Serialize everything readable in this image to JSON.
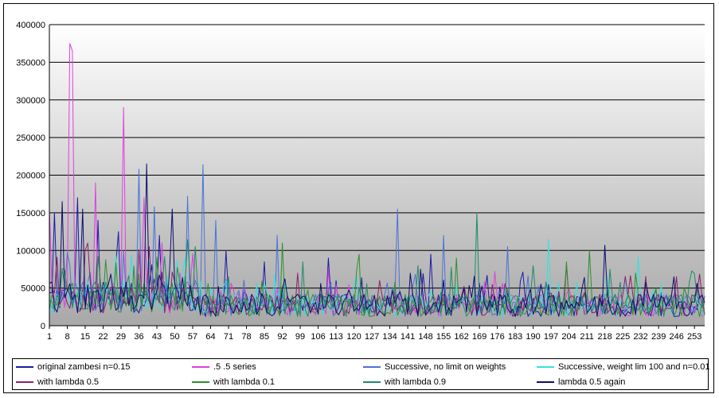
{
  "chart_data": {
    "type": "line",
    "title": "",
    "xlabel": "",
    "ylabel": "",
    "ylim": [
      0,
      400000
    ],
    "y_ticks": [
      0,
      50000,
      100000,
      150000,
      200000,
      250000,
      300000,
      350000,
      400000
    ],
    "y_tick_labels": [
      "0",
      "50000",
      "100000",
      "150000",
      "200000",
      "250000",
      "300000",
      "350000",
      "400000"
    ],
    "x_range": [
      1,
      257
    ],
    "x_tick_labels": [
      "1",
      "8",
      "15",
      "22",
      "29",
      "36",
      "43",
      "50",
      "57",
      "64",
      "71",
      "78",
      "85",
      "92",
      "99",
      "106",
      "113",
      "120",
      "127",
      "134",
      "141",
      "148",
      "155",
      "162",
      "169",
      "176",
      "183",
      "190",
      "197",
      "204",
      "211",
      "218",
      "225",
      "232",
      "239",
      "246",
      "253"
    ],
    "grid": "horizontal major gridlines",
    "plot_background": "gradient from light gray at top to darker gray at bottom",
    "legend_position": "bottom",
    "series": [
      {
        "name": "original zambesi n=0.15",
        "color": "#1a1aa6",
        "peaks": [
          [
            3,
            150000
          ],
          [
            12,
            170000
          ],
          [
            20,
            140000
          ],
          [
            28,
            125000
          ],
          [
            44,
            120000
          ],
          [
            70,
            100000
          ],
          [
            85,
            85000
          ],
          [
            110,
            90000
          ],
          [
            150,
            95000
          ]
        ]
      },
      {
        "name": ".5 .5 series",
        "color": "#e040e0",
        "peaks": [
          [
            1,
            155000
          ],
          [
            9,
            375000
          ],
          [
            10,
            365000
          ],
          [
            19,
            190000
          ],
          [
            30,
            290000
          ],
          [
            38,
            170000
          ],
          [
            45,
            110000
          ],
          [
            52,
            70000
          ]
        ]
      },
      {
        "name": "Successive, no limit on weights",
        "color": "#4a73d6",
        "peaks": [
          [
            36,
            208000
          ],
          [
            42,
            158000
          ],
          [
            55,
            172000
          ],
          [
            61,
            214000
          ],
          [
            66,
            140000
          ],
          [
            90,
            120000
          ],
          [
            137,
            155000
          ],
          [
            155,
            120000
          ],
          [
            180,
            105000
          ]
        ]
      },
      {
        "name": "Successive, weight lim 100 and n=0.01",
        "color": "#36e0e0",
        "peaks": [
          [
            60,
            60000
          ],
          [
            120,
            55000
          ],
          [
            196,
            115000
          ],
          [
            231,
            92000
          ],
          [
            240,
            55000
          ]
        ]
      },
      {
        "name": "with lambda 0.5",
        "color": "#8c1f6a",
        "peaks": [
          [
            15,
            100000
          ],
          [
            40,
            105000
          ],
          [
            98,
            70000
          ],
          [
            130,
            60000
          ],
          [
            203,
            80000
          ],
          [
            246,
            65000
          ]
        ]
      },
      {
        "name": "with lambda 0.1",
        "color": "#2f8f2f",
        "peaks": [
          [
            92,
            110000
          ],
          [
            122,
            95000
          ],
          [
            160,
            90000
          ],
          [
            203,
            85000
          ],
          [
            212,
            100000
          ],
          [
            230,
            70000
          ]
        ]
      },
      {
        "name": "with lambda 0.9",
        "color": "#1f8a6a",
        "peaks": [
          [
            100,
            85000
          ],
          [
            145,
            80000
          ],
          [
            168,
            150000
          ],
          [
            190,
            80000
          ],
          [
            220,
            75000
          ]
        ]
      },
      {
        "name": "lambda 0.5 again",
        "color": "#0d0d6e",
        "peaks": [
          [
            6,
            165000
          ],
          [
            14,
            155000
          ],
          [
            39,
            215000
          ],
          [
            49,
            155000
          ],
          [
            146,
            75000
          ],
          [
            218,
            107000
          ],
          [
            245,
            65000
          ]
        ]
      }
    ]
  }
}
